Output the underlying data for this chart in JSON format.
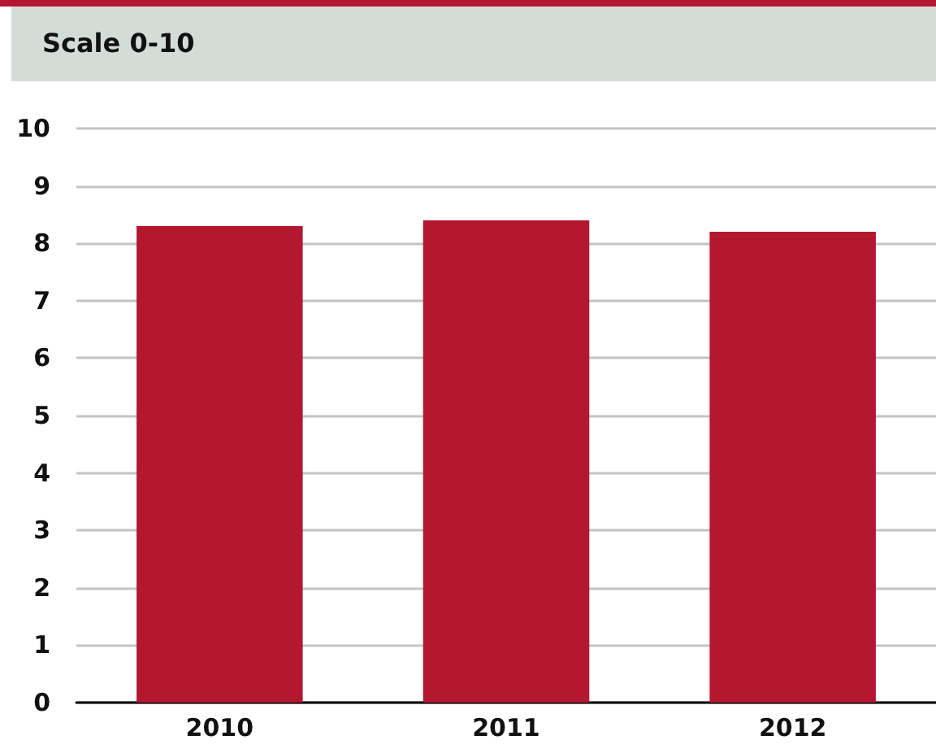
{
  "chart_data": {
    "type": "bar",
    "title": "Scale 0-10",
    "categories": [
      "2010",
      "2011",
      "2012"
    ],
    "values": [
      8.3,
      8.4,
      8.2
    ],
    "color": "#b31830",
    "ylim": [
      0,
      10
    ],
    "yticks": [
      0,
      1,
      2,
      3,
      4,
      5,
      6,
      7,
      8,
      9,
      10
    ],
    "grid": "y"
  }
}
